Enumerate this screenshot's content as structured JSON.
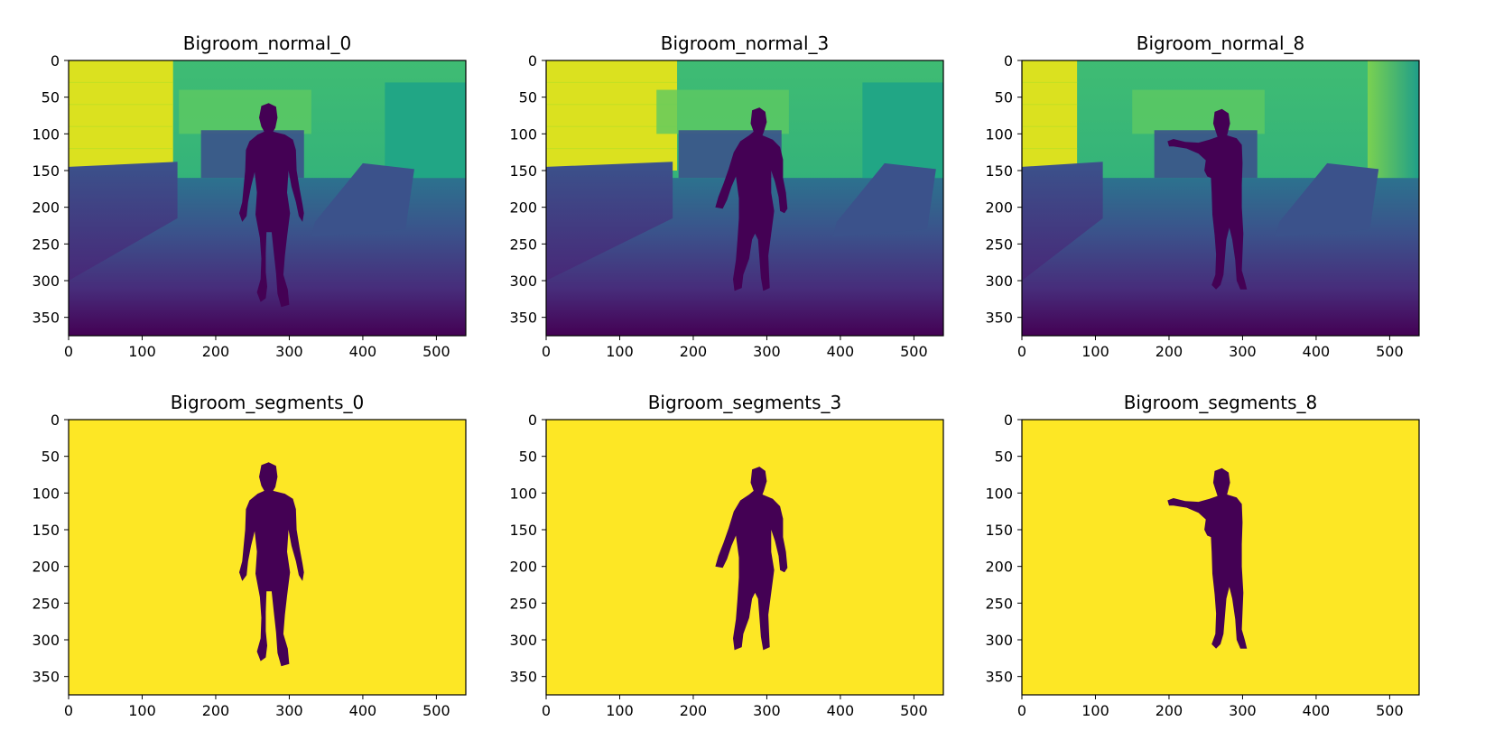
{
  "chart_data": [
    {
      "type": "heatmap",
      "title": "Bigroom_normal_0",
      "image": "depth",
      "pose": "stand",
      "xlim": [
        0,
        540
      ],
      "ylim": [
        375,
        0
      ],
      "xticks": [
        0,
        100,
        200,
        300,
        400,
        500
      ],
      "yticks": [
        0,
        50,
        100,
        150,
        200,
        250,
        300,
        350
      ],
      "grid": false
    },
    {
      "type": "heatmap",
      "title": "Bigroom_normal_3",
      "image": "depth",
      "pose": "walk",
      "xlim": [
        0,
        540
      ],
      "ylim": [
        375,
        0
      ],
      "xticks": [
        0,
        100,
        200,
        300,
        400,
        500
      ],
      "yticks": [
        0,
        50,
        100,
        150,
        200,
        250,
        300,
        350
      ],
      "grid": false
    },
    {
      "type": "heatmap",
      "title": "Bigroom_normal_8",
      "image": "depth",
      "pose": "reach",
      "xlim": [
        0,
        540
      ],
      "ylim": [
        375,
        0
      ],
      "xticks": [
        0,
        100,
        200,
        300,
        400,
        500
      ],
      "yticks": [
        0,
        50,
        100,
        150,
        200,
        250,
        300,
        350
      ],
      "grid": false
    },
    {
      "type": "heatmap",
      "title": "Bigroom_segments_0",
      "image": "segment",
      "pose": "stand",
      "xlim": [
        0,
        540
      ],
      "ylim": [
        375,
        0
      ],
      "xticks": [
        0,
        100,
        200,
        300,
        400,
        500
      ],
      "yticks": [
        0,
        50,
        100,
        150,
        200,
        250,
        300,
        350
      ],
      "grid": false
    },
    {
      "type": "heatmap",
      "title": "Bigroom_segments_3",
      "image": "segment",
      "pose": "walk",
      "xlim": [
        0,
        540
      ],
      "ylim": [
        375,
        0
      ],
      "xticks": [
        0,
        100,
        200,
        300,
        400,
        500
      ],
      "yticks": [
        0,
        50,
        100,
        150,
        200,
        250,
        300,
        350
      ],
      "grid": false
    },
    {
      "type": "heatmap",
      "title": "Bigroom_segments_8",
      "image": "segment",
      "pose": "reach",
      "xlim": [
        0,
        540
      ],
      "ylim": [
        375,
        0
      ],
      "xticks": [
        0,
        100,
        200,
        300,
        400,
        500
      ],
      "yticks": [
        0,
        50,
        100,
        150,
        200,
        250,
        300,
        350
      ],
      "grid": false
    }
  ],
  "colors": {
    "viridis_yellow": "#fde725",
    "viridis_dark": "#440154",
    "depth_far": "#dbe11f",
    "depth_green": "#5ec962",
    "depth_teal": "#21a685",
    "depth_blue": "#3b528b",
    "depth_floor": "#472d7b"
  }
}
